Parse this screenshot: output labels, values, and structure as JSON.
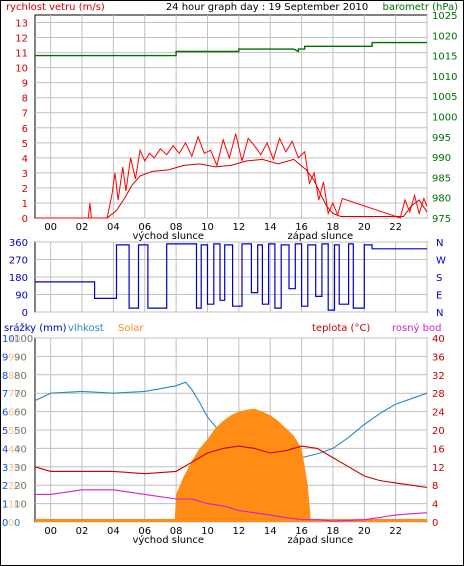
{
  "title": "24 hour graph day : 19 September 2010",
  "colors": {
    "wind": "#d40000",
    "gust": "#ff0000",
    "baro": "#007000",
    "dir": "#0000c8",
    "humidity": "#2a86c8",
    "solar": "#ff8c14",
    "temp": "#c80000",
    "dew": "#d020d0",
    "rain": "#0050ff",
    "grid": "#c0c0c0",
    "frame": "#000000"
  },
  "x_ticks": [
    "00",
    "02",
    "04",
    "06",
    "08",
    "10",
    "12",
    "14",
    "16",
    "18",
    "20",
    "22",
    ""
  ],
  "sunrise_label": "východ slunce",
  "sunset_label": "západ slunce",
  "chart_data": [
    {
      "type": "line",
      "title": "24 hour graph day : 19 September 2010",
      "left_axis_label": "rychlost vetru (m/s)",
      "right_axis_label": "barometr (hPa)",
      "left_ticks": [
        "0",
        "1",
        "2",
        "3",
        "4",
        "5",
        "6",
        "7",
        "8",
        "9",
        "10",
        "11",
        "12",
        "13"
      ],
      "right_ticks": [
        "975",
        "980",
        "985",
        "990",
        "995",
        "1000",
        "1005",
        "1010",
        "1015",
        "1020",
        "1025"
      ],
      "ylim_left": [
        0,
        13.5
      ],
      "ylim_right": [
        975,
        1025
      ],
      "xlim_hours": [
        -1,
        24
      ],
      "series": [
        {
          "key": "wind",
          "x": [
            -1,
            3.6,
            4.2,
            4.7,
            5.2,
            5.7,
            6.5,
            7.5,
            8.5,
            9.5,
            10.5,
            11.5,
            12.5,
            13.5,
            14.5,
            15.5,
            16.3,
            16.8,
            17.2,
            17.6,
            18.0,
            18.5,
            22.5,
            23.0,
            23.5,
            24.0
          ],
          "y": [
            0,
            0,
            0.5,
            1.3,
            2.2,
            2.8,
            3.1,
            3.2,
            3.5,
            3.6,
            3.4,
            3.5,
            3.8,
            3.9,
            3.6,
            3.9,
            3.2,
            2.5,
            1.6,
            0.8,
            0.3,
            0.1,
            0.1,
            0.8,
            1.2,
            0.4
          ]
        },
        {
          "key": "gust",
          "x": [
            -1,
            2.4,
            2.5,
            2.6,
            3.6,
            3.9,
            4.1,
            4.3,
            4.6,
            4.8,
            5.1,
            5.4,
            5.7,
            6.0,
            6.3,
            6.6,
            7.0,
            7.4,
            7.8,
            8.2,
            8.6,
            9.0,
            9.4,
            9.8,
            10.2,
            10.6,
            11.0,
            11.4,
            11.8,
            12.2,
            12.6,
            13.0,
            13.4,
            13.8,
            14.2,
            14.6,
            15.0,
            15.4,
            15.8,
            16.2,
            16.5,
            16.8,
            17.1,
            17.4,
            17.7,
            18.0,
            18.3,
            18.6,
            22.3,
            22.6,
            22.9,
            23.2,
            23.5,
            23.8,
            24.0
          ],
          "y": [
            0,
            0,
            1.0,
            0,
            0,
            1.5,
            3.0,
            1.2,
            3.4,
            1.8,
            4.0,
            2.6,
            4.5,
            3.8,
            4.3,
            4.0,
            4.6,
            4.2,
            4.8,
            4.3,
            5.0,
            4.1,
            5.4,
            4.3,
            4.5,
            3.5,
            5.2,
            4.0,
            5.6,
            3.8,
            5.3,
            4.8,
            4.2,
            5.0,
            3.9,
            5.3,
            4.4,
            5.1,
            4.0,
            4.4,
            2.3,
            3.0,
            1.2,
            2.4,
            0.3,
            1.0,
            0.2,
            1.3,
            0,
            1.2,
            0.4,
            1.5,
            0.3,
            1.3,
            0.8
          ]
        },
        {
          "key": "baro",
          "axis": "right",
          "x": [
            -1,
            8.0,
            8.0,
            12.0,
            12.0,
            15.5,
            15.8,
            15.8,
            16.2,
            16.2,
            20.5,
            20.5,
            24.0
          ],
          "y": [
            1015,
            1015,
            1016,
            1016,
            1016.6,
            1016.6,
            1016,
            1016.6,
            1016.6,
            1017.3,
            1017.3,
            1018.2,
            1018.2
          ]
        }
      ]
    },
    {
      "type": "line",
      "right_labels": [
        "N",
        "W",
        "S",
        "E",
        "N"
      ],
      "left_ticks": [
        "0",
        "90",
        "180",
        "270",
        "360"
      ],
      "ylim": [
        0,
        360
      ],
      "xlim_hours": [
        -1,
        24
      ],
      "series": [
        {
          "key": "dir",
          "x": [
            -1,
            2.8,
            2.8,
            4.2,
            4.2,
            5.0,
            5.0,
            5.6,
            5.6,
            6.2,
            6.2,
            7.4,
            7.4,
            9.3,
            9.3,
            9.6,
            9.6,
            10.0,
            10.0,
            10.4,
            10.4,
            10.8,
            10.8,
            11.1,
            11.1,
            11.6,
            11.6,
            12.2,
            12.2,
            12.8,
            12.8,
            13.2,
            13.2,
            13.5,
            13.5,
            13.9,
            13.9,
            14.3,
            14.3,
            14.7,
            14.7,
            15.2,
            15.2,
            15.6,
            15.6,
            16.0,
            16.0,
            16.4,
            16.4,
            16.9,
            16.9,
            17.3,
            17.3,
            17.7,
            17.7,
            18.1,
            18.1,
            18.4,
            18.4,
            19.0,
            19.0,
            19.3,
            19.3,
            20.0,
            20.0,
            20.5,
            20.5,
            24.0
          ],
          "y": [
            155,
            155,
            70,
            70,
            345,
            345,
            20,
            20,
            345,
            345,
            20,
            20,
            350,
            350,
            20,
            20,
            345,
            345,
            40,
            40,
            350,
            350,
            60,
            60,
            345,
            345,
            30,
            30,
            350,
            350,
            100,
            100,
            345,
            345,
            40,
            40,
            350,
            350,
            20,
            20,
            345,
            345,
            120,
            120,
            350,
            350,
            30,
            30,
            345,
            345,
            80,
            80,
            350,
            350,
            10,
            10,
            345,
            345,
            40,
            40,
            350,
            350,
            20,
            20,
            345,
            345,
            325,
            325
          ]
        }
      ]
    },
    {
      "type": "line",
      "left_axis_label": "srážky (mm)",
      "humidity_label": "vlhkost",
      "solar_label": "Solar",
      "temp_label": "teplota (°C)",
      "dew_label": "rosný bod",
      "rain_ticks": [
        "0",
        "1",
        "2",
        "3",
        "4",
        "5",
        "6",
        "7",
        "8",
        "9",
        "10"
      ],
      "humidity_ticks": [
        "0",
        "10",
        "20",
        "30",
        "40",
        "50",
        "60",
        "70",
        "80",
        "90",
        "100"
      ],
      "solar_ticks": [
        "0",
        "100",
        "200",
        "300",
        "400",
        "500",
        "600",
        "700",
        "800",
        "900",
        "1000"
      ],
      "temp_ticks": [
        "0",
        "4",
        "8",
        "12",
        "16",
        "20",
        "24",
        "28",
        "32",
        "36",
        "40"
      ],
      "ylim_pct": [
        0,
        100
      ],
      "xlim_hours": [
        -1,
        24
      ],
      "series": [
        {
          "key": "humidity",
          "unit": "%",
          "x": [
            -1,
            0,
            2,
            4,
            6,
            8,
            8.6,
            9,
            9.5,
            10,
            10.5,
            11,
            11.5,
            12,
            13,
            14,
            15,
            16,
            17,
            18,
            19,
            20,
            21,
            22,
            23,
            24
          ],
          "y": [
            66,
            70,
            71,
            70,
            71,
            74,
            76,
            72,
            65,
            57,
            52,
            47,
            45,
            44,
            40,
            37,
            35,
            35,
            37,
            40,
            46,
            53,
            59,
            64,
            67,
            70
          ]
        },
        {
          "key": "solar",
          "unit": "W/m2",
          "x": [
            -1,
            7.9,
            8.0,
            8.5,
            9,
            9.5,
            10,
            10.5,
            11,
            11.5,
            12,
            12.5,
            13,
            13.5,
            14,
            14.5,
            15,
            15.5,
            16,
            16.4,
            16.6,
            24
          ],
          "y": [
            0,
            0,
            150,
            250,
            330,
            400,
            450,
            510,
            550,
            580,
            600,
            610,
            615,
            600,
            580,
            550,
            510,
            470,
            400,
            200,
            0,
            0
          ]
        },
        {
          "key": "temp",
          "unit": "°C",
          "x": [
            -1,
            0,
            2,
            4,
            6,
            8,
            9,
            10,
            11,
            12,
            13,
            14,
            15,
            16,
            17,
            18,
            19,
            20,
            21,
            22,
            23,
            24
          ],
          "y": [
            12,
            11,
            11,
            11,
            10.5,
            11,
            13,
            15,
            16,
            16.5,
            16,
            15,
            15.5,
            16.5,
            16,
            14,
            12,
            10,
            9,
            8.5,
            8,
            7.5
          ]
        },
        {
          "key": "dew",
          "unit": "°C",
          "x": [
            -1,
            0,
            2,
            4,
            6,
            8,
            9,
            10,
            11,
            12,
            13,
            14,
            15,
            16,
            17,
            18,
            19,
            20,
            21,
            22,
            23,
            24
          ],
          "y": [
            6,
            6,
            7,
            7,
            6,
            5,
            5,
            4,
            3.5,
            2.5,
            2,
            1.5,
            1,
            0.5,
            0.5,
            0.2,
            0.3,
            0.5,
            1,
            1.5,
            1.8,
            2
          ]
        }
      ]
    }
  ]
}
